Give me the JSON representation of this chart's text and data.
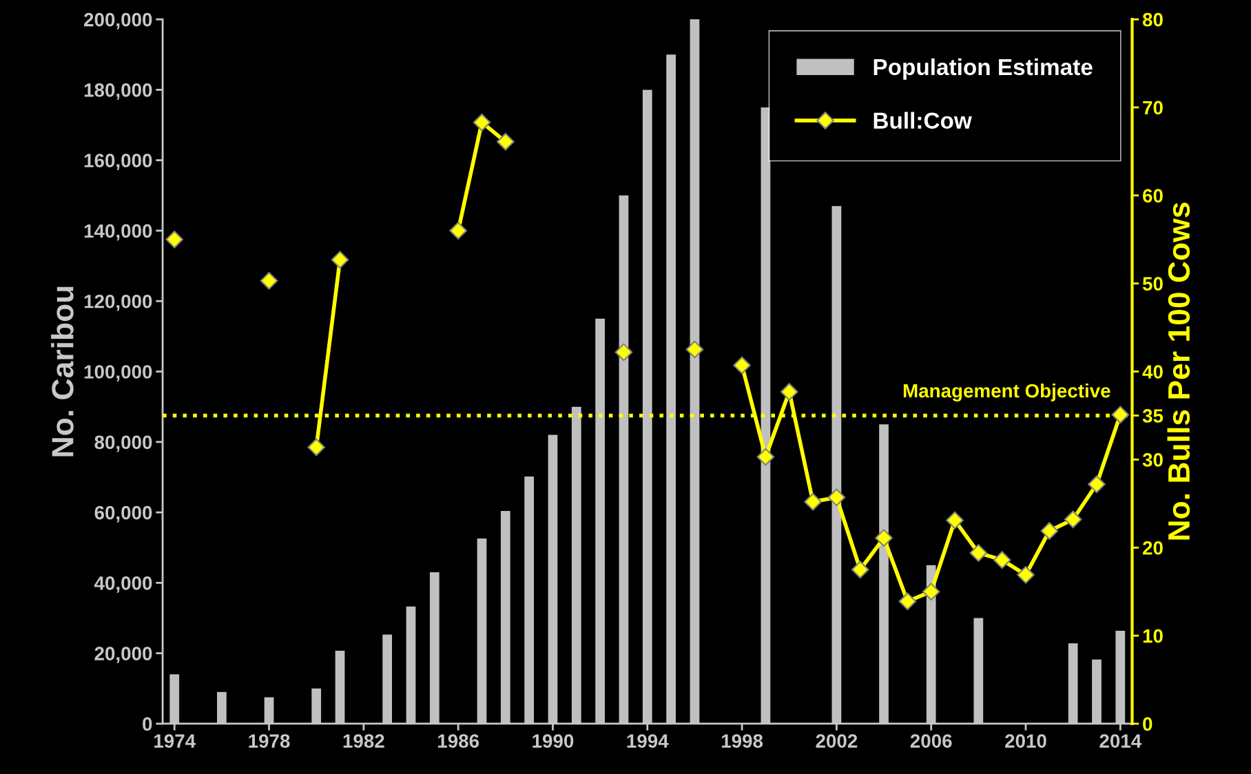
{
  "chart_data": {
    "type": "bar",
    "ylabel": "No. Caribou",
    "y2label": "No. Bulls Per 100 Cows",
    "xlim": [
      1973.5,
      2014.5
    ],
    "xticks": [
      1974,
      1978,
      1982,
      1986,
      1990,
      1994,
      1998,
      2002,
      2006,
      2010,
      2014
    ],
    "ylim": [
      0,
      200000
    ],
    "yticks": [
      {
        "value": 0,
        "label": "0"
      },
      {
        "value": 20000,
        "label": "20,000"
      },
      {
        "value": 40000,
        "label": "40,000"
      },
      {
        "value": 60000,
        "label": "60,000"
      },
      {
        "value": 80000,
        "label": "80,000"
      },
      {
        "value": 100000,
        "label": "100,000"
      },
      {
        "value": 120000,
        "label": "120,000"
      },
      {
        "value": 140000,
        "label": "140,000"
      },
      {
        "value": 160000,
        "label": "160,000"
      },
      {
        "value": 180000,
        "label": "180,000"
      },
      {
        "value": 200000,
        "label": "200,000"
      }
    ],
    "y2lim": [
      0,
      80
    ],
    "y2ticks": [
      0,
      10,
      20,
      30,
      35,
      40,
      50,
      60,
      70,
      80
    ],
    "legend": "top right",
    "grid": false,
    "series": [
      {
        "name": "Population Estimate",
        "color": "#c0c0c0",
        "x": [
          1974,
          1976,
          1978,
          1980,
          1981,
          1983,
          1984,
          1985,
          1987,
          1988,
          1989,
          1990,
          1991,
          1992,
          1993,
          1994,
          1995,
          1996,
          1999,
          2002,
          2004,
          2006,
          2008,
          2012,
          2013,
          2014
        ],
        "values": [
          14000,
          9000,
          7500,
          10000,
          20700,
          25300,
          33300,
          43000,
          52600,
          60400,
          70200,
          82000,
          90000,
          115000,
          150000,
          180000,
          190000,
          200000,
          175000,
          147000,
          85000,
          45000,
          30000,
          22800,
          18200,
          26400
        ]
      },
      {
        "name": "Bull:Cow",
        "type": "line",
        "axis": "y2",
        "color": "#ffff00",
        "marker": "diamond",
        "line_style": "solid",
        "x": [
          1974,
          1975,
          1978,
          1979,
          1980,
          1981,
          1982,
          1986,
          1987,
          1988,
          1989,
          1993,
          1994,
          1996,
          1997,
          1998,
          1999,
          2000,
          2001,
          2002,
          2003,
          2004,
          2005,
          2006,
          2007,
          2008,
          2009,
          2010,
          2011,
          2012,
          2013,
          2014
        ],
        "values": [
          55.0,
          null,
          50.3,
          null,
          31.4,
          52.7,
          null,
          56.0,
          68.3,
          66.1,
          null,
          42.2,
          null,
          42.5,
          null,
          40.7,
          30.3,
          37.7,
          25.2,
          25.7,
          17.5,
          21.1,
          13.9,
          15.0,
          23.1,
          19.4,
          18.6,
          16.9,
          21.9,
          23.2,
          27.2,
          35.1
        ]
      }
    ],
    "ref_lines": [
      {
        "axis": "y2",
        "value": 35,
        "label": "Management Objective",
        "color": "#ffff00",
        "line_style": "dotted"
      }
    ]
  }
}
